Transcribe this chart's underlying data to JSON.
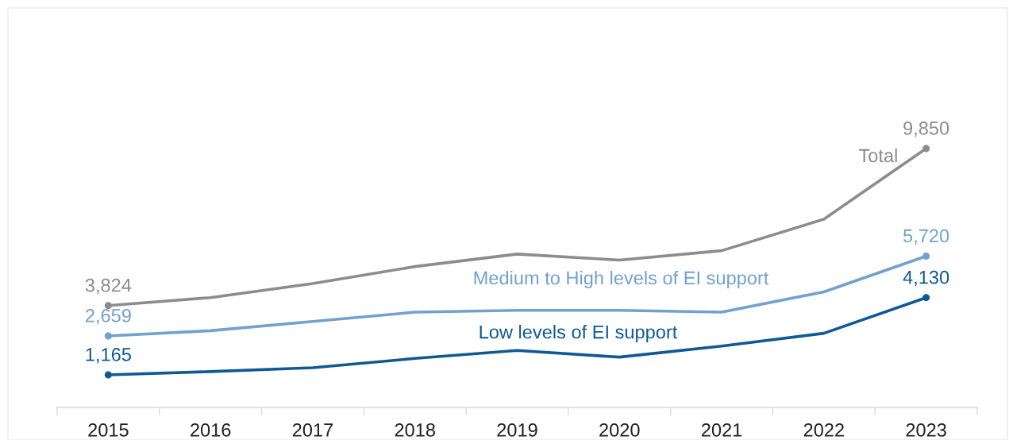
{
  "chart_data": {
    "type": "line",
    "categories": [
      "2015",
      "2016",
      "2017",
      "2018",
      "2019",
      "2020",
      "2021",
      "2022",
      "2023"
    ],
    "tick_labels": "x",
    "line_style": "solid",
    "series": [
      {
        "name": "Total",
        "color": "#8c8c8c",
        "values": [
          3824,
          4130,
          4670,
          5320,
          5800,
          5570,
          5930,
          7140,
          9850
        ],
        "value_labels": [
          "3,824",
          null,
          null,
          null,
          null,
          null,
          null,
          null,
          "9,850"
        ]
      },
      {
        "name": "Medium to High levels of EI support",
        "color": "#72a0cf",
        "values": [
          2659,
          2860,
          3215,
          3570,
          3640,
          3640,
          3570,
          4350,
          5720
        ],
        "value_labels": [
          "2,659",
          null,
          null,
          null,
          null,
          null,
          null,
          null,
          "5,720"
        ]
      },
      {
        "name": "Low levels of EI support",
        "color": "#0e5a94",
        "values": [
          1165,
          1290,
          1440,
          1795,
          2100,
          1845,
          2270,
          2760,
          4130
        ],
        "value_labels": [
          "1,165",
          null,
          null,
          null,
          null,
          null,
          null,
          null,
          "4,130"
        ]
      }
    ]
  }
}
